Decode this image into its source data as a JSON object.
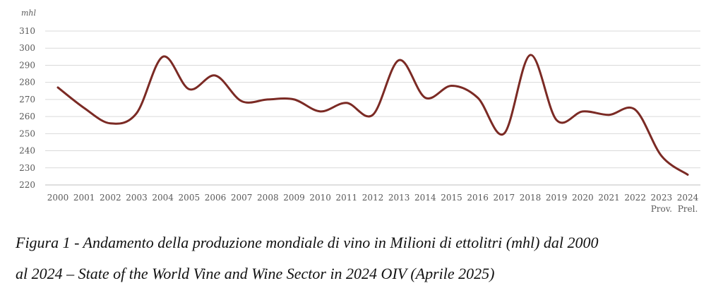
{
  "chart_data": {
    "type": "line",
    "unit_label": "mhl",
    "x": [
      "2000",
      "2001",
      "2002",
      "2003",
      "2004",
      "2005",
      "2006",
      "2007",
      "2008",
      "2009",
      "2010",
      "2011",
      "2012",
      "2013",
      "2014",
      "2015",
      "2016",
      "2017",
      "2018",
      "2019",
      "2020",
      "2021",
      "2022",
      "2023",
      "2024"
    ],
    "x_sublabels": {
      "2023": "Prov.",
      "2024": "Prel."
    },
    "series": [
      {
        "values": [
          277,
          265,
          256,
          262,
          295,
          276,
          284,
          269,
          270,
          270,
          263,
          268,
          261,
          293,
          271,
          278,
          271,
          250,
          296,
          258,
          263,
          261,
          264,
          237,
          226
        ],
        "color": "#7b2a24"
      }
    ],
    "ylim": [
      220,
      310
    ],
    "yticks": [
      220,
      230,
      240,
      250,
      260,
      270,
      280,
      290,
      300,
      310
    ],
    "grid": true
  },
  "caption": {
    "line1": "Figura 1 - Andamento della produzione mondiale di vino in Milioni di ettolitri (mhl) dal 2000",
    "line2": "al 2024 – State of the World Vine and Wine Sector in 2024 OIV (Aprile 2025)"
  }
}
